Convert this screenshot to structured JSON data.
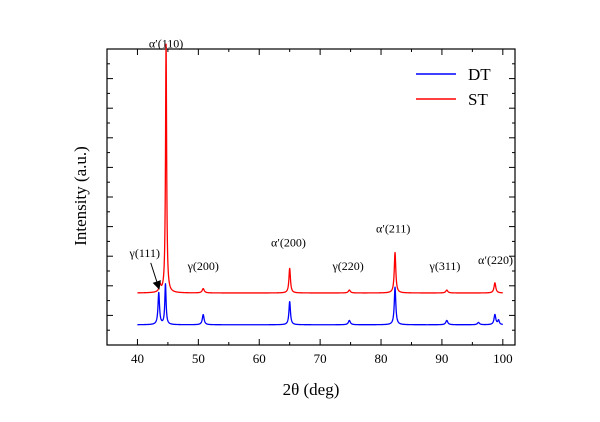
{
  "chart_data": {
    "type": "line",
    "xlabel": "2θ (deg)",
    "ylabel": "Intensity (a.u.)",
    "xlim": [
      35,
      102
    ],
    "ylim": [
      0,
      100
    ],
    "x_ticks": [
      40,
      50,
      60,
      70,
      80,
      90,
      100
    ],
    "x_tick_labels": [
      "40",
      "50",
      "60",
      "70",
      "80",
      "90",
      "100"
    ],
    "y_tick_labels": "none",
    "grid": false,
    "legend": {
      "placement": "top-right",
      "entries": [
        "DT",
        "ST"
      ]
    },
    "colors": {
      "DT": "#0000ff",
      "ST": "#ff0000",
      "axis": "#000000"
    },
    "series": [
      {
        "name": "DT",
        "baseline": 7,
        "peaks": [
          {
            "x": 43.5,
            "height": 11,
            "width": 0.3
          },
          {
            "x": 44.6,
            "height": 14,
            "width": 0.25
          },
          {
            "x": 50.8,
            "height": 3.5,
            "width": 0.35
          },
          {
            "x": 65.0,
            "height": 8,
            "width": 0.3
          },
          {
            "x": 74.8,
            "height": 1.5,
            "width": 0.4
          },
          {
            "x": 82.3,
            "height": 13,
            "width": 0.3
          },
          {
            "x": 90.8,
            "height": 1.5,
            "width": 0.4
          },
          {
            "x": 96.0,
            "height": 0.8,
            "width": 0.4
          },
          {
            "x": 98.7,
            "height": 3.5,
            "width": 0.35
          },
          {
            "x": 99.3,
            "height": 1.5,
            "width": 0.3
          }
        ]
      },
      {
        "name": "ST",
        "baseline": 18,
        "peaks": [
          {
            "x": 43.7,
            "height": 2.5,
            "width": 0.35
          },
          {
            "x": 44.7,
            "height": 86,
            "width": 0.22
          },
          {
            "x": 50.8,
            "height": 1.5,
            "width": 0.4
          },
          {
            "x": 65.0,
            "height": 8.5,
            "width": 0.3
          },
          {
            "x": 74.8,
            "height": 1.0,
            "width": 0.4
          },
          {
            "x": 82.3,
            "height": 14,
            "width": 0.3
          },
          {
            "x": 90.8,
            "height": 1.0,
            "width": 0.4
          },
          {
            "x": 98.7,
            "height": 3.5,
            "width": 0.35
          }
        ]
      }
    ],
    "annotations": [
      {
        "label": "α′(110)",
        "x": 44.7,
        "y": 103
      },
      {
        "label": "γ(111)",
        "x": 41.2,
        "y": 30.5
      },
      {
        "label": "γ(200)",
        "x": 50.8,
        "y": 26
      },
      {
        "label": "α′(200)",
        "x": 64.8,
        "y": 34
      },
      {
        "label": "γ(220)",
        "x": 74.6,
        "y": 26
      },
      {
        "label": "α′(211)",
        "x": 82.0,
        "y": 39
      },
      {
        "label": "γ(311)",
        "x": 90.5,
        "y": 26
      },
      {
        "label": "α′(220)",
        "x": 98.8,
        "y": 28
      }
    ]
  }
}
